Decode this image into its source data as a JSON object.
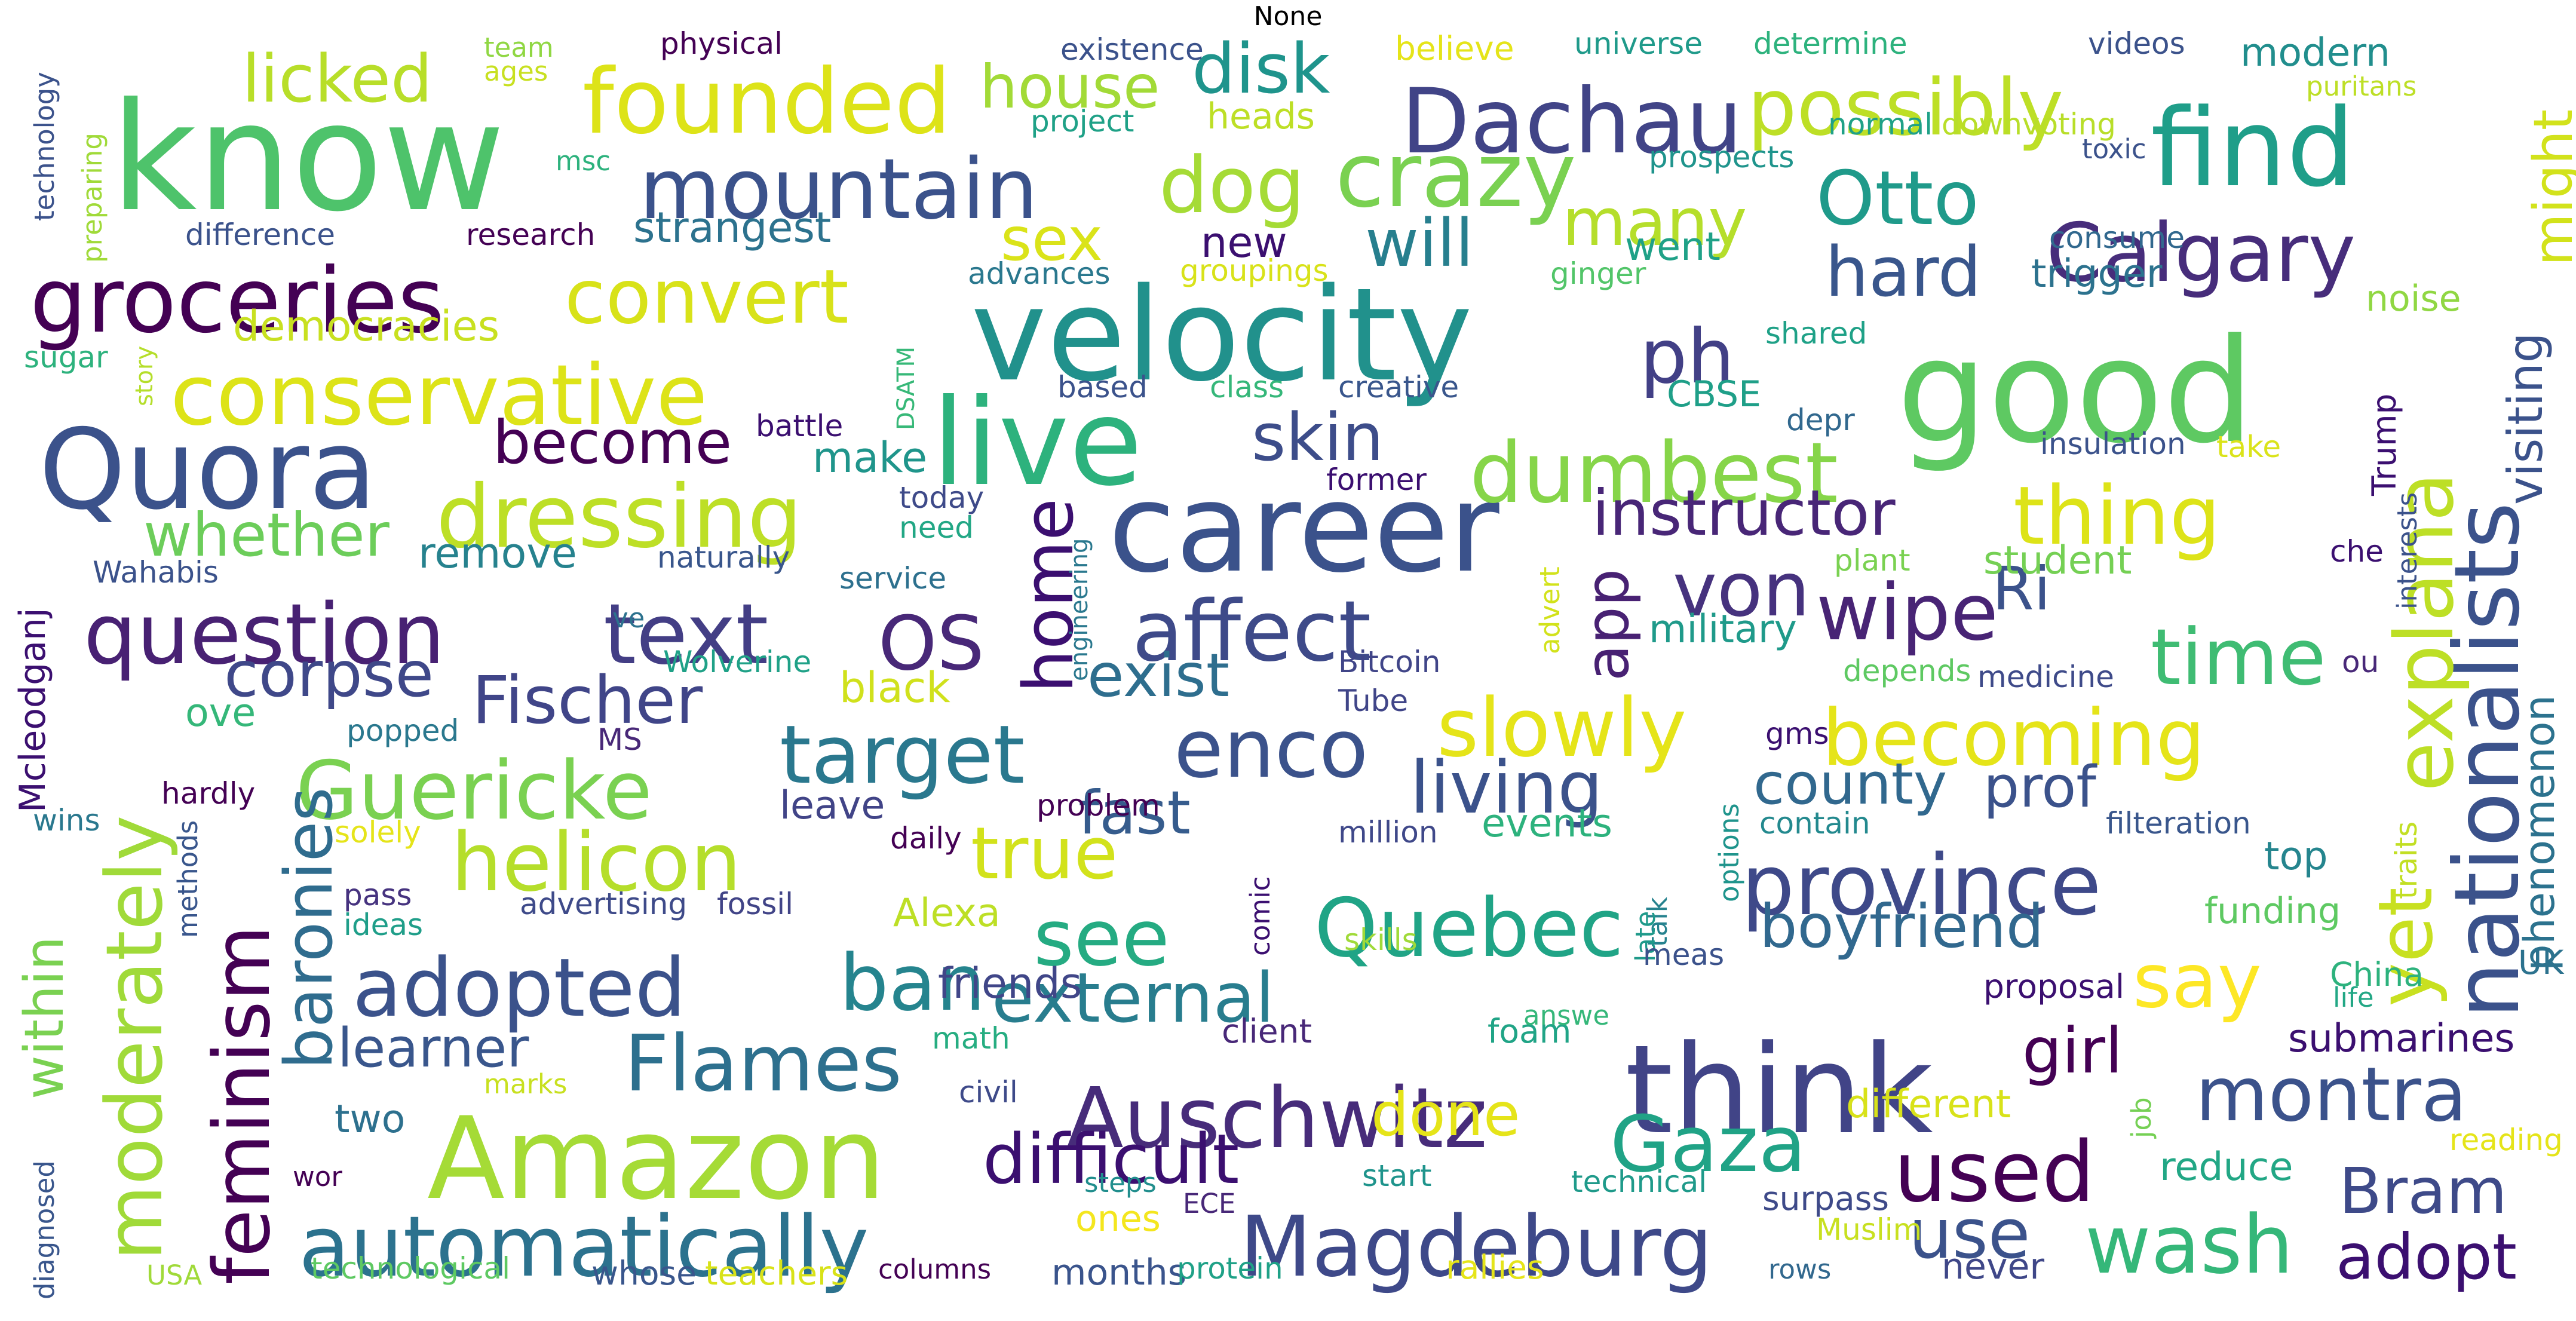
{
  "title": "None",
  "words": [
    {
      "text": "know",
      "size": 250,
      "color": "#4ec36b"
    },
    {
      "text": "good",
      "size": 240,
      "color": "#5ec962"
    },
    {
      "text": "velocity",
      "size": 215,
      "color": "#21918c"
    },
    {
      "text": "career",
      "size": 205,
      "color": "#3b528b"
    },
    {
      "text": "think",
      "size": 205,
      "color": "#414487"
    },
    {
      "text": "live",
      "size": 200,
      "color": "#2db27d"
    },
    {
      "text": "Amazon",
      "size": 190,
      "color": "#a5db36"
    },
    {
      "text": "Quora",
      "size": 185,
      "color": "#3b528b"
    },
    {
      "text": "find",
      "size": 180,
      "color": "#1f9e89"
    },
    {
      "text": "nationalists",
      "size": 150,
      "color": "#3b528b"
    },
    {
      "text": "Dachau",
      "size": 150,
      "color": "#414487"
    },
    {
      "text": "founded",
      "size": 150,
      "color": "#dde318"
    },
    {
      "text": "conservative",
      "size": 140,
      "color": "#dde318"
    },
    {
      "text": "groceries",
      "size": 150,
      "color": "#440154"
    },
    {
      "text": "crazy",
      "size": 150,
      "color": "#7ad151"
    },
    {
      "text": "dressing",
      "size": 145,
      "color": "#bddf26"
    },
    {
      "text": "mountain",
      "size": 140,
      "color": "#3b528b"
    },
    {
      "text": "Calgary",
      "size": 135,
      "color": "#472d7b"
    },
    {
      "text": "possibly",
      "size": 130,
      "color": "#bddf26"
    },
    {
      "text": "dumbest",
      "size": 140,
      "color": "#86d549"
    },
    {
      "text": "affect",
      "size": 140,
      "color": "#3e4a89"
    },
    {
      "text": "question",
      "size": 140,
      "color": "#482173"
    },
    {
      "text": "text",
      "size": 140,
      "color": "#433e85"
    },
    {
      "text": "automatically",
      "size": 140,
      "color": "#2c728e"
    },
    {
      "text": "Magdeburg",
      "size": 140,
      "color": "#3e4989"
    },
    {
      "text": "Auschwitz",
      "size": 140,
      "color": "#472c7a"
    },
    {
      "text": "Guericke",
      "size": 135,
      "color": "#7ad151"
    },
    {
      "text": "target",
      "size": 135,
      "color": "#2a788e"
    },
    {
      "text": "helicon",
      "size": 135,
      "color": "#b5de2b"
    },
    {
      "text": "province",
      "size": 140,
      "color": "#3e4989"
    },
    {
      "text": "explana",
      "size": 135,
      "color": "#bddf26"
    },
    {
      "text": "adopted",
      "size": 135,
      "color": "#3b528b"
    },
    {
      "text": "Quebec",
      "size": 135,
      "color": "#20a486"
    },
    {
      "text": "enco",
      "size": 135,
      "color": "#3b528b"
    },
    {
      "text": "moderately",
      "size": 130,
      "color": "#a0da39"
    },
    {
      "text": "feminism",
      "size": 130,
      "color": "#440154"
    },
    {
      "text": "convert",
      "size": 125,
      "color": "#d8e219"
    },
    {
      "text": "dog",
      "size": 130,
      "color": "#a5db36"
    },
    {
      "text": "ph",
      "size": 125,
      "color": "#424086"
    },
    {
      "text": "thing",
      "size": 135,
      "color": "#dde318"
    },
    {
      "text": "slowly",
      "size": 135,
      "color": "#e5e419"
    },
    {
      "text": "becoming",
      "size": 130,
      "color": "#e5e419"
    },
    {
      "text": "Flames",
      "size": 130,
      "color": "#2d708e"
    },
    {
      "text": "Gaza",
      "size": 130,
      "color": "#20a386"
    },
    {
      "text": "montra",
      "size": 125,
      "color": "#3b528b"
    },
    {
      "text": "used",
      "size": 140,
      "color": "#440154"
    },
    {
      "text": "wash",
      "size": 135,
      "color": "#35b779"
    },
    {
      "text": "time",
      "size": 130,
      "color": "#3fbc73"
    },
    {
      "text": "Otto",
      "size": 125,
      "color": "#1f9a8a"
    },
    {
      "text": "wipe",
      "size": 130,
      "color": "#482475"
    },
    {
      "text": "see",
      "size": 130,
      "color": "#25ab82"
    },
    {
      "text": "ban",
      "size": 130,
      "color": "#25848e"
    },
    {
      "text": "yet",
      "size": 125,
      "color": "#c8e020"
    },
    {
      "text": "say",
      "size": 125,
      "color": "#fde725"
    },
    {
      "text": "von",
      "size": 125,
      "color": "#46327e"
    },
    {
      "text": "OS",
      "size": 125,
      "color": "#482878"
    },
    {
      "text": "living",
      "size": 120,
      "color": "#3b528b"
    },
    {
      "text": "home",
      "size": 115,
      "color": "#3b0f70"
    },
    {
      "text": "external",
      "size": 115,
      "color": "#287d8e"
    },
    {
      "text": "difficult",
      "size": 115,
      "color": "#3b0f70"
    },
    {
      "text": "use",
      "size": 115,
      "color": "#3b528b"
    },
    {
      "text": "hard",
      "size": 115,
      "color": "#39568c"
    },
    {
      "text": "disk",
      "size": 115,
      "color": "#1f948c"
    },
    {
      "text": "baronies",
      "size": 110,
      "color": "#2f6c8e"
    },
    {
      "text": "skin",
      "size": 110,
      "color": "#3d4d8a"
    },
    {
      "text": "instructor",
      "size": 105,
      "color": "#482677"
    },
    {
      "text": "true",
      "size": 120,
      "color": "#d2e21b"
    },
    {
      "text": "will",
      "size": 110,
      "color": "#277f8e"
    },
    {
      "text": "many",
      "size": 110,
      "color": "#b5de2b"
    },
    {
      "text": "Fischer",
      "size": 110,
      "color": "#404588"
    },
    {
      "text": "corpse",
      "size": 105,
      "color": "#3f4889"
    },
    {
      "text": "licked",
      "size": 110,
      "color": "#b8de29"
    },
    {
      "text": "house",
      "size": 100,
      "color": "#a2da37"
    },
    {
      "text": "sex",
      "size": 100,
      "color": "#dae319"
    },
    {
      "text": "become",
      "size": 100,
      "color": "#440154"
    },
    {
      "text": "whether",
      "size": 100,
      "color": "#6ccd5a"
    },
    {
      "text": "exist",
      "size": 100,
      "color": "#2e6e8e"
    },
    {
      "text": "fast",
      "size": 100,
      "color": "#365c8d"
    },
    {
      "text": "county",
      "size": 95,
      "color": "#31688e"
    },
    {
      "text": "prof",
      "size": 95,
      "color": "#3b528b"
    },
    {
      "text": "boyfriend",
      "size": 100,
      "color": "#31688e"
    },
    {
      "text": "girl",
      "size": 105,
      "color": "#440154"
    },
    {
      "text": "done",
      "size": 100,
      "color": "#e5e419"
    },
    {
      "text": "Bram",
      "size": 105,
      "color": "#3e4a89"
    },
    {
      "text": "adopt",
      "size": 105,
      "color": "#3b0f70"
    },
    {
      "text": "learner",
      "size": 90,
      "color": "#39568c"
    },
    {
      "text": "within",
      "size": 90,
      "color": "#7ad151"
    },
    {
      "text": "app",
      "size": 100,
      "color": "#482173"
    },
    {
      "text": "Ri",
      "size": 100,
      "color": "#3b528b"
    },
    {
      "text": "might",
      "size": 90,
      "color": "#d2e21b"
    },
    {
      "text": "visiting",
      "size": 80,
      "color": "#3b528b"
    },
    {
      "text": "phenomenon",
      "size": 70,
      "color": "#2c728e"
    },
    {
      "text": "strangest",
      "size": 70,
      "color": "#2c728e"
    },
    {
      "text": "democracies",
      "size": 70,
      "color": "#c8e020"
    },
    {
      "text": "remove",
      "size": 70,
      "color": "#26828e"
    },
    {
      "text": "Mcleodganj",
      "size": 60,
      "color": "#3b0f70"
    },
    {
      "text": "make",
      "size": 70,
      "color": "#1f958b"
    },
    {
      "text": "new",
      "size": 70,
      "color": "#3b0f70"
    },
    {
      "text": "ove",
      "size": 65,
      "color": "#35b779"
    },
    {
      "text": "black",
      "size": 70,
      "color": "#d0e11c"
    },
    {
      "text": "two",
      "size": 65,
      "color": "#2d708e"
    },
    {
      "text": "leave",
      "size": 65,
      "color": "#414487"
    },
    {
      "text": "friends",
      "size": 70,
      "color": "#404688"
    },
    {
      "text": "Alexa",
      "size": 65,
      "color": "#bddf26"
    },
    {
      "text": "events",
      "size": 65,
      "color": "#2db27d"
    },
    {
      "text": "military",
      "size": 65,
      "color": "#1f9a8a"
    },
    {
      "text": "student",
      "size": 65,
      "color": "#75d054"
    },
    {
      "text": "went",
      "size": 65,
      "color": "#1fa187"
    },
    {
      "text": "heads",
      "size": 60,
      "color": "#bddf26"
    },
    {
      "text": "modern",
      "size": 65,
      "color": "#218e8d"
    },
    {
      "text": "trigger",
      "size": 65,
      "color": "#2c728e"
    },
    {
      "text": "noise",
      "size": 60,
      "color": "#90d743"
    },
    {
      "text": "submarines",
      "size": 65,
      "color": "#3b0f70"
    },
    {
      "text": "different",
      "size": 65,
      "color": "#d8e219"
    },
    {
      "text": "reduce",
      "size": 65,
      "color": "#22a785"
    },
    {
      "text": "top",
      "size": 65,
      "color": "#25858e"
    },
    {
      "text": "funding",
      "size": 60,
      "color": "#5ec962"
    },
    {
      "text": "ones",
      "size": 60,
      "color": "#f4e61e"
    },
    {
      "text": "months",
      "size": 60,
      "color": "#3a548c"
    },
    {
      "text": "never",
      "size": 60,
      "color": "#3f4788"
    },
    {
      "text": "Trump",
      "size": 55,
      "color": "#3b0f70"
    },
    {
      "text": "CBSE",
      "size": 60,
      "color": "#1f9f88"
    },
    {
      "text": "traits",
      "size": 50,
      "color": "#c2df23"
    },
    {
      "text": "UK",
      "size": 55,
      "color": "#2c728e"
    },
    {
      "text": "China",
      "size": 55,
      "color": "#2db27d"
    },
    {
      "text": "proposal",
      "size": 55,
      "color": "#3b0f70"
    },
    {
      "text": "surpass",
      "size": 55,
      "color": "#3e4a89"
    },
    {
      "text": "client",
      "size": 55,
      "color": "#482878"
    },
    {
      "text": "foam",
      "size": 55,
      "color": "#20a486"
    },
    {
      "text": "math",
      "size": 50,
      "color": "#26ad81"
    },
    {
      "text": "ideas",
      "size": 50,
      "color": "#1f9e89"
    },
    {
      "text": "solely",
      "size": 50,
      "color": "#e5e419"
    },
    {
      "text": "advertising",
      "size": 50,
      "color": "#3e4a89"
    },
    {
      "text": "fossil",
      "size": 50,
      "color": "#414487"
    },
    {
      "text": "pass",
      "size": 50,
      "color": "#46337f"
    },
    {
      "text": "million",
      "size": 50,
      "color": "#3f4889"
    },
    {
      "text": "problem",
      "size": 50,
      "color": "#440154"
    },
    {
      "text": "daily",
      "size": 50,
      "color": "#440154"
    },
    {
      "text": "hardly",
      "size": 50,
      "color": "#440154"
    },
    {
      "text": "wins",
      "size": 50,
      "color": "#2a788e"
    },
    {
      "text": "popped",
      "size": 50,
      "color": "#2a788e"
    },
    {
      "text": "MS",
      "size": 50,
      "color": "#482878"
    },
    {
      "text": "Wolverine",
      "size": 50,
      "color": "#1fa187"
    },
    {
      "text": "Bitcoin",
      "size": 50,
      "color": "#404588"
    },
    {
      "text": "Tube",
      "size": 50,
      "color": "#404588"
    },
    {
      "text": "service",
      "size": 50,
      "color": "#2d708e"
    },
    {
      "text": "naturally",
      "size": 50,
      "color": "#39568c"
    },
    {
      "text": "Wahabis",
      "size": 50,
      "color": "#3b528b"
    },
    {
      "text": "ve",
      "size": 45,
      "color": "#2c728e"
    },
    {
      "text": "today",
      "size": 50,
      "color": "#3e4a89"
    },
    {
      "text": "need",
      "size": 50,
      "color": "#22a785"
    },
    {
      "text": "battle",
      "size": 50,
      "color": "#3b0f70"
    },
    {
      "text": "based",
      "size": 50,
      "color": "#3b528b"
    },
    {
      "text": "class",
      "size": 50,
      "color": "#35b779"
    },
    {
      "text": "creative",
      "size": 50,
      "color": "#39568c"
    },
    {
      "text": "former",
      "size": 50,
      "color": "#3b0f70"
    },
    {
      "text": "depr",
      "size": 50,
      "color": "#31688e"
    },
    {
      "text": "shared",
      "size": 50,
      "color": "#1fa187"
    },
    {
      "text": "insulation",
      "size": 50,
      "color": "#3b528b"
    },
    {
      "text": "take",
      "size": 50,
      "color": "#dae319"
    },
    {
      "text": "consume",
      "size": 50,
      "color": "#31688e"
    },
    {
      "text": "ginger",
      "size": 50,
      "color": "#52c569"
    },
    {
      "text": "groupings",
      "size": 50,
      "color": "#d8e219"
    },
    {
      "text": "advances",
      "size": 50,
      "color": "#2a788e"
    },
    {
      "text": "plant",
      "size": 50,
      "color": "#7ad151"
    },
    {
      "text": "che",
      "size": 50,
      "color": "#3b0f70"
    },
    {
      "text": "interests",
      "size": 45,
      "color": "#3b528b"
    },
    {
      "text": "ou",
      "size": 50,
      "color": "#482878"
    },
    {
      "text": "depends",
      "size": 50,
      "color": "#5ec962"
    },
    {
      "text": "medicine",
      "size": 50,
      "color": "#3e4a89"
    },
    {
      "text": "gms",
      "size": 50,
      "color": "#3b0f70"
    },
    {
      "text": "contain",
      "size": 50,
      "color": "#23898e"
    },
    {
      "text": "filteration",
      "size": 50,
      "color": "#39568c"
    },
    {
      "text": "options",
      "size": 45,
      "color": "#1f948c"
    },
    {
      "text": "talk",
      "size": 45,
      "color": "#26828e"
    },
    {
      "text": "late",
      "size": 45,
      "color": "#1f9a8a"
    },
    {
      "text": "meas",
      "size": 50,
      "color": "#3b528b"
    },
    {
      "text": "comic",
      "size": 45,
      "color": "#3b0f70"
    },
    {
      "text": "skills",
      "size": 50,
      "color": "#a0da39"
    },
    {
      "text": "answe",
      "size": 45,
      "color": "#35b779"
    },
    {
      "text": "advert",
      "size": 45,
      "color": "#d2e21b"
    },
    {
      "text": "job",
      "size": 45,
      "color": "#75d054"
    },
    {
      "text": "life",
      "size": 45,
      "color": "#22a785"
    },
    {
      "text": "reading",
      "size": 50,
      "color": "#e5e419"
    },
    {
      "text": "Muslim",
      "size": 50,
      "color": "#c8e020"
    },
    {
      "text": "technical",
      "size": 50,
      "color": "#1f9a8a"
    },
    {
      "text": "rows",
      "size": 45,
      "color": "#31688e"
    },
    {
      "text": "rallies",
      "size": 55,
      "color": "#e5e419"
    },
    {
      "text": "protein",
      "size": 50,
      "color": "#1fa187"
    },
    {
      "text": "columns",
      "size": 45,
      "color": "#440154"
    },
    {
      "text": "start",
      "size": 50,
      "color": "#1f948c"
    },
    {
      "text": "ECE",
      "size": 45,
      "color": "#482878"
    },
    {
      "text": "steps",
      "size": 45,
      "color": "#218e8d"
    },
    {
      "text": "teachers",
      "size": 55,
      "color": "#d8e219"
    },
    {
      "text": "whose",
      "size": 55,
      "color": "#39568c"
    },
    {
      "text": "technological",
      "size": 50,
      "color": "#5ec962"
    },
    {
      "text": "USA",
      "size": 45,
      "color": "#a0da39"
    },
    {
      "text": "wor",
      "size": 45,
      "color": "#440154"
    },
    {
      "text": "marks",
      "size": 45,
      "color": "#c8e020"
    },
    {
      "text": "civil",
      "size": 50,
      "color": "#3e4a89"
    },
    {
      "text": "methods",
      "size": 45,
      "color": "#39568c"
    },
    {
      "text": "diagnosed",
      "size": 45,
      "color": "#39568c"
    },
    {
      "text": "engineering",
      "size": 40,
      "color": "#2a788e"
    },
    {
      "text": "DSATM",
      "size": 40,
      "color": "#37b878"
    },
    {
      "text": "story",
      "size": 40,
      "color": "#b5de2b"
    },
    {
      "text": "sugar",
      "size": 50,
      "color": "#2db27d"
    },
    {
      "text": "difference",
      "size": 50,
      "color": "#3b528b"
    },
    {
      "text": "research",
      "size": 50,
      "color": "#440154"
    },
    {
      "text": "msc",
      "size": 45,
      "color": "#2db27d"
    },
    {
      "text": "preparing",
      "size": 45,
      "color": "#a0da39"
    },
    {
      "text": "technology",
      "size": 45,
      "color": "#3b528b"
    },
    {
      "text": "team",
      "size": 45,
      "color": "#90d743"
    },
    {
      "text": "ages",
      "size": 45,
      "color": "#c8e020"
    },
    {
      "text": "physical",
      "size": 50,
      "color": "#440154"
    },
    {
      "text": "existence",
      "size": 50,
      "color": "#3b528b"
    },
    {
      "text": "project",
      "size": 50,
      "color": "#1fa187"
    },
    {
      "text": "believe",
      "size": 55,
      "color": "#e5e419"
    },
    {
      "text": "universe",
      "size": 50,
      "color": "#1f9a8a"
    },
    {
      "text": "determine",
      "size": 50,
      "color": "#2db27d"
    },
    {
      "text": "normal",
      "size": 50,
      "color": "#1fa187"
    },
    {
      "text": "downvoting",
      "size": 50,
      "color": "#b8de29"
    },
    {
      "text": "prospects",
      "size": 50,
      "color": "#1f948c"
    },
    {
      "text": "videos",
      "size": 50,
      "color": "#3b528b"
    },
    {
      "text": "puritans",
      "size": 45,
      "color": "#bddf26"
    },
    {
      "text": "toxic",
      "size": 45,
      "color": "#3b528b"
    }
  ]
}
